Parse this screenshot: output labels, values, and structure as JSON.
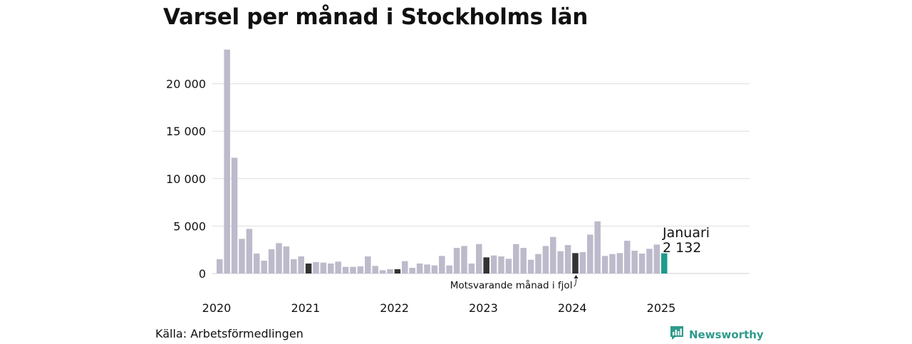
{
  "title": "Varsel per månad i Stockholms län",
  "source": "Källa: Arbetsförmedlingen",
  "brand": {
    "name": "Newsworthy",
    "icon": "newsworthy-logo-icon"
  },
  "colors": {
    "bar": "#bdbacb",
    "highlight": "#333333",
    "current": "#1e9a8c",
    "grid": "#dddde3",
    "brand": "#2e9a8a"
  },
  "chart_data": {
    "type": "bar",
    "title": "Varsel per månad i Stockholms län",
    "xlabel": "",
    "ylabel": "",
    "ylim": [
      0,
      23500
    ],
    "yticks": [
      0,
      5000,
      10000,
      15000,
      20000
    ],
    "ytick_labels": [
      "0",
      "5 000",
      "10 000",
      "15 000",
      "20 000"
    ],
    "xtick_labels": [
      "2020",
      "2021",
      "2022",
      "2023",
      "2024",
      "2025"
    ],
    "x_start": "2020-01",
    "x_end": "2025-12",
    "grid": true,
    "legend": "none",
    "months": [
      "2020-01",
      "2020-02",
      "2020-03",
      "2020-04",
      "2020-05",
      "2020-06",
      "2020-07",
      "2020-08",
      "2020-09",
      "2020-10",
      "2020-11",
      "2020-12",
      "2021-01",
      "2021-02",
      "2021-03",
      "2021-04",
      "2021-05",
      "2021-06",
      "2021-07",
      "2021-08",
      "2021-09",
      "2021-10",
      "2021-11",
      "2021-12",
      "2022-01",
      "2022-02",
      "2022-03",
      "2022-04",
      "2022-05",
      "2022-06",
      "2022-07",
      "2022-08",
      "2022-09",
      "2022-10",
      "2022-11",
      "2022-12",
      "2023-01",
      "2023-02",
      "2023-03",
      "2023-04",
      "2023-05",
      "2023-06",
      "2023-07",
      "2023-08",
      "2023-09",
      "2023-10",
      "2023-11",
      "2023-12",
      "2024-01",
      "2024-02",
      "2024-03",
      "2024-04",
      "2024-05",
      "2024-06",
      "2024-07",
      "2024-08",
      "2024-09",
      "2024-10",
      "2024-11",
      "2024-12",
      "2025-01"
    ],
    "values": [
      1500,
      23600,
      12200,
      3650,
      4700,
      2100,
      1350,
      2550,
      3200,
      2850,
      1500,
      1800,
      1050,
      1200,
      1150,
      1050,
      1250,
      700,
      700,
      750,
      1800,
      800,
      350,
      450,
      450,
      1300,
      600,
      1050,
      950,
      850,
      1850,
      850,
      2700,
      2900,
      1050,
      3100,
      1700,
      1900,
      1800,
      1550,
      3100,
      2700,
      1450,
      2050,
      2900,
      3850,
      2350,
      3000,
      2150,
      2250,
      4100,
      5500,
      1850,
      2050,
      2150,
      3450,
      2400,
      2100,
      2600,
      3050,
      2132
    ],
    "highlight_months": [
      "2021-01",
      "2022-01",
      "2023-01",
      "2024-01"
    ],
    "current_month": "2025-01",
    "annotations": {
      "current_label": "Januari",
      "current_value": "2 132",
      "previous_year": "Motsvarande månad i fjol"
    }
  }
}
